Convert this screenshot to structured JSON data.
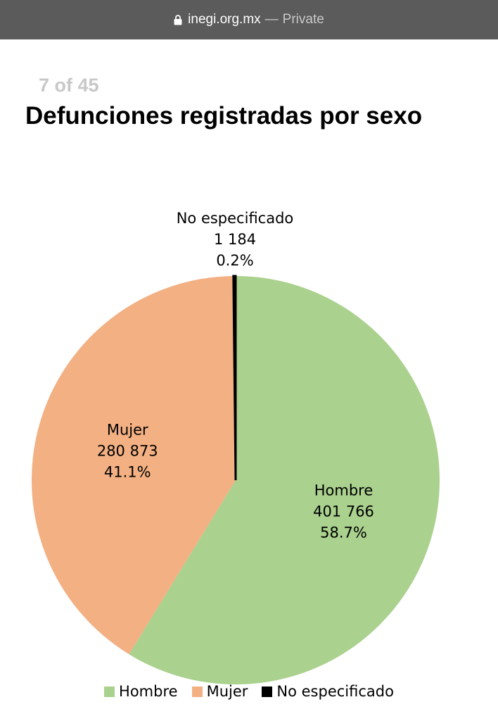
{
  "browser": {
    "url": "inegi.org.mx",
    "separator": "—",
    "mode": "Private",
    "lock_icon": "lock-icon"
  },
  "page": {
    "indicator": "7 of 45",
    "title": "Defunciones registradas por sexo"
  },
  "chart_data": {
    "type": "pie",
    "title": "Defunciones registradas por sexo",
    "slices": [
      {
        "name": "Hombre",
        "value": 401766,
        "value_label": "401 766",
        "percent": 58.7,
        "percent_label": "58.7%",
        "color": "#aad18e"
      },
      {
        "name": "Mujer",
        "value": 280873,
        "value_label": "280 873",
        "percent": 41.1,
        "percent_label": "41.1%",
        "color": "#f2b083"
      },
      {
        "name": "No especificado",
        "value": 1184,
        "value_label": "1 184",
        "percent": 0.2,
        "percent_label": "0.2%",
        "color": "#000000"
      }
    ],
    "legend_position": "bottom"
  }
}
